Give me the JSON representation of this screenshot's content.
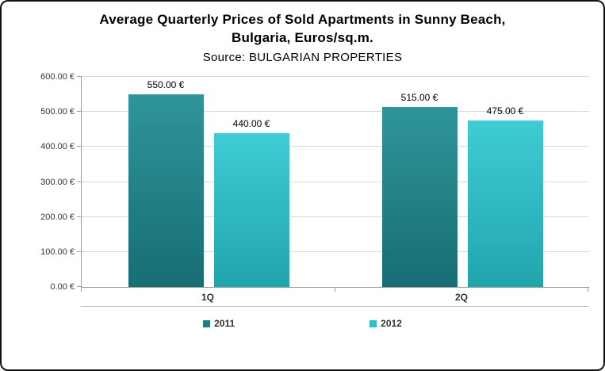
{
  "frame": {
    "background": "#ffffff",
    "border_color": "#111111"
  },
  "chart_data": {
    "type": "bar",
    "title": "Average Quarterly Prices of Sold Apartments in Sunny Beach, Bulgaria, Euros/sq.m.",
    "title_line1": "Average Quarterly Prices of Sold Apartments in Sunny Beach,",
    "title_line2": "Bulgaria, Euros/sq.m.",
    "subtitle": "Source: BULGARIAN PROPERTIES",
    "categories": [
      "1Q",
      "2Q"
    ],
    "series": [
      {
        "name": "2011",
        "values": [
          550,
          515
        ],
        "labels": [
          "550.00 €",
          "515.00 €"
        ],
        "color_top": "#2f959b",
        "color_bottom": "#176d74",
        "legend_color": "#1e7e85"
      },
      {
        "name": "2012",
        "values": [
          440,
          475
        ],
        "labels": [
          "440.00 €",
          "475.00 €"
        ],
        "color_top": "#3fccd4",
        "color_bottom": "#21a5ad",
        "legend_color": "#2fbfc7"
      }
    ],
    "ylim": [
      0,
      600
    ],
    "yticks": [
      0,
      100,
      200,
      300,
      400,
      500,
      600
    ],
    "ytick_labels": [
      "0.00 €",
      "100.00 €",
      "200.00 €",
      "300.00 €",
      "400.00 €",
      "500.00 €",
      "600.00 €"
    ],
    "grid": true,
    "legend_position": "bottom",
    "colors": {
      "grid": "#d9d9d9",
      "axis": "#9c9c9c",
      "text": "#333333"
    }
  }
}
